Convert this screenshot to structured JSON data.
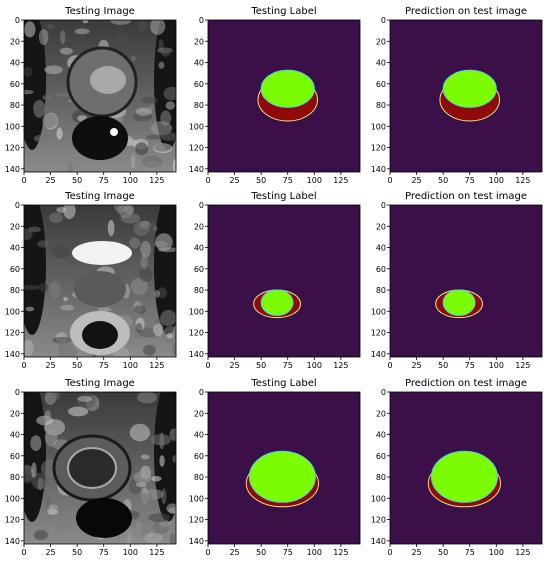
{
  "figure": {
    "rows": [
      {
        "panels": [
          {
            "title": "Testing Image",
            "kind": "mri",
            "variant": 0
          },
          {
            "title": "Testing Label",
            "kind": "mask",
            "cx": 75,
            "cy": 75,
            "rx": 28,
            "ry": 20,
            "inner_top": 43,
            "inner_bottom": 78,
            "inner_rx": 25
          },
          {
            "title": "Prediction on test image",
            "kind": "mask",
            "cx": 75,
            "cy": 75,
            "rx": 28,
            "ry": 20,
            "inner_top": 43,
            "inner_bottom": 78,
            "inner_rx": 25
          }
        ]
      },
      {
        "panels": [
          {
            "title": "Testing Image",
            "kind": "mri",
            "variant": 1
          },
          {
            "title": "Testing Label",
            "kind": "mask",
            "cx": 65,
            "cy": 93,
            "rx": 22,
            "ry": 13,
            "inner_top": 77,
            "inner_bottom": 101,
            "inner_rx": 15
          },
          {
            "title": "Prediction on test image",
            "kind": "mask",
            "cx": 65,
            "cy": 93,
            "rx": 22,
            "ry": 13,
            "inner_top": 77,
            "inner_bottom": 101,
            "inner_rx": 15
          }
        ]
      },
      {
        "panels": [
          {
            "title": "Testing Image",
            "kind": "mri",
            "variant": 2
          },
          {
            "title": "Testing Label",
            "kind": "mask",
            "cx": 70,
            "cy": 86,
            "rx": 34,
            "ry": 22,
            "inner_top": 50,
            "inner_bottom": 98,
            "inner_rx": 31
          },
          {
            "title": "Prediction on test image",
            "kind": "mask",
            "cx": 70,
            "cy": 86,
            "rx": 34,
            "ry": 22,
            "inner_top": 50,
            "inner_bottom": 98,
            "inner_rx": 31
          }
        ]
      }
    ]
  },
  "chart_data": {
    "type": "heatmap",
    "xlim": [
      0,
      143
    ],
    "ylim": [
      143,
      0
    ],
    "x_ticks": [
      "0",
      "25",
      "50",
      "75",
      "100",
      "125"
    ],
    "y_ticks": [
      "0",
      "20",
      "40",
      "60",
      "80",
      "100",
      "120",
      "140"
    ],
    "x_tick_values": [
      0,
      25,
      50,
      75,
      100,
      125
    ],
    "y_tick_values": [
      0,
      20,
      40,
      60,
      80,
      100,
      120,
      140
    ],
    "colors": {
      "background": "#3b0f47",
      "class_red": "#8f0a0a",
      "class_green": "#7cfc00",
      "edge_cyan": "#4fd2e6",
      "edge_yellow": "#e8e27a"
    }
  }
}
